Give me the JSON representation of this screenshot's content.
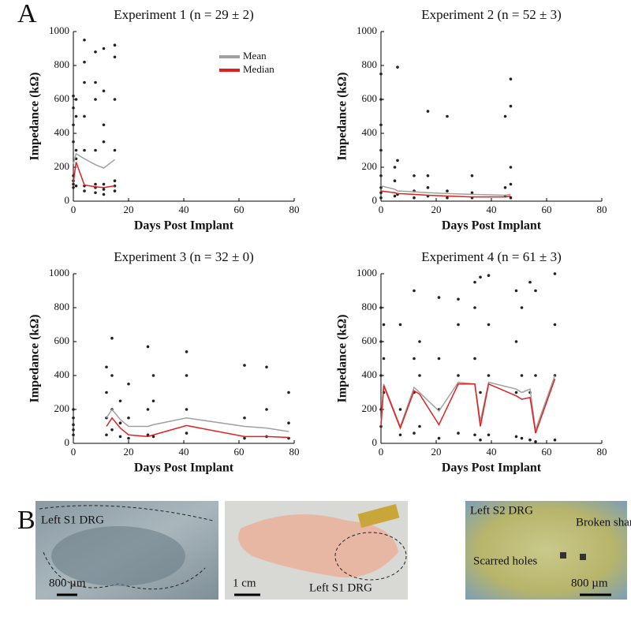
{
  "panel_labels": [
    "A",
    "B"
  ],
  "chart_data": [
    {
      "type": "scatter-line",
      "title": "Experiment 1 (n = 29 ± 2)",
      "x_label": "Days Post Implant",
      "y_label": "Impedance (kΩ)",
      "xlim": [
        0,
        80
      ],
      "xticks": [
        0,
        20,
        40,
        60,
        80
      ],
      "ylim": [
        0,
        1000
      ],
      "yticks": [
        0,
        200,
        400,
        600,
        800,
        1000
      ],
      "legend": "upper right",
      "points": {
        "color": "#222222",
        "x": [
          0,
          0,
          0,
          0,
          0,
          0,
          0,
          0,
          1,
          1,
          1,
          1,
          1,
          4,
          4,
          4,
          4,
          4,
          4,
          4,
          8,
          8,
          8,
          8,
          8,
          8,
          8,
          11,
          11,
          11,
          11,
          11,
          11,
          11,
          15,
          15,
          15,
          15,
          15,
          15,
          15
        ],
        "y": [
          80,
          100,
          120,
          150,
          350,
          450,
          550,
          620,
          90,
          250,
          300,
          500,
          600,
          60,
          90,
          300,
          500,
          700,
          820,
          950,
          50,
          80,
          100,
          300,
          600,
          700,
          880,
          40,
          70,
          100,
          350,
          450,
          650,
          900,
          60,
          90,
          120,
          300,
          600,
          850,
          920
        ]
      },
      "x": [
        0,
        1,
        4,
        8,
        11,
        15
      ],
      "series": [
        {
          "name": "Mean",
          "color": "#a0a0a0",
          "values": [
            220,
            280,
            250,
            215,
            195,
            245
          ]
        },
        {
          "name": "Median",
          "color": "#e02020",
          "values": [
            110,
            230,
            95,
            85,
            80,
            90
          ]
        }
      ]
    },
    {
      "type": "scatter-line",
      "title": "Experiment 2 (n = 52 ± 3)",
      "x_label": "Days Post Implant",
      "y_label": "Impedance (kΩ)",
      "xlim": [
        0,
        80
      ],
      "xticks": [
        0,
        20,
        40,
        60,
        80
      ],
      "ylim": [
        0,
        1000
      ],
      "yticks": [
        0,
        200,
        400,
        600,
        800,
        1000
      ],
      "points": {
        "color": "#222222",
        "x": [
          0,
          0,
          0,
          0,
          0,
          0,
          0,
          0,
          5,
          5,
          5,
          6,
          6,
          6,
          12,
          12,
          12,
          17,
          17,
          17,
          17,
          24,
          24,
          24,
          33,
          33,
          33,
          45,
          45,
          45,
          47,
          47,
          47,
          47,
          47
        ],
        "y": [
          20,
          50,
          80,
          150,
          300,
          450,
          600,
          750,
          30,
          120,
          200,
          40,
          240,
          790,
          20,
          60,
          150,
          30,
          80,
          150,
          530,
          20,
          60,
          500,
          20,
          50,
          150,
          30,
          80,
          500,
          20,
          100,
          200,
          560,
          720
        ]
      },
      "x": [
        0,
        5,
        6,
        12,
        17,
        24,
        33,
        45,
        47
      ],
      "series": [
        {
          "name": "Mean",
          "color": "#a0a0a0",
          "values": [
            90,
            70,
            60,
            55,
            50,
            45,
            40,
            35,
            40
          ]
        },
        {
          "name": "Median",
          "color": "#e02020",
          "values": [
            60,
            50,
            45,
            40,
            35,
            30,
            25,
            25,
            30
          ]
        }
      ]
    },
    {
      "type": "scatter-line",
      "title": "Experiment 3 (n = 32 ± 0)",
      "x_label": "Days Post Implant",
      "y_label": "Impedance (kΩ)",
      "xlim": [
        0,
        80
      ],
      "xticks": [
        0,
        20,
        40,
        60,
        80
      ],
      "ylim": [
        0,
        1000
      ],
      "yticks": [
        0,
        200,
        400,
        600,
        800,
        1000
      ],
      "points": {
        "color": "#222222",
        "x": [
          0,
          0,
          0,
          0,
          0,
          12,
          12,
          12,
          12,
          14,
          14,
          14,
          14,
          17,
          17,
          17,
          20,
          20,
          20,
          27,
          27,
          27,
          29,
          29,
          29,
          41,
          41,
          41,
          41,
          62,
          62,
          62,
          70,
          70,
          70,
          78,
          78,
          78
        ],
        "y": [
          50,
          80,
          110,
          150,
          200,
          50,
          150,
          300,
          450,
          80,
          200,
          400,
          620,
          40,
          120,
          250,
          30,
          150,
          350,
          50,
          200,
          570,
          40,
          250,
          400,
          60,
          200,
          400,
          540,
          30,
          150,
          460,
          40,
          200,
          450,
          30,
          120,
          300
        ]
      },
      "x": [
        12,
        14,
        17,
        20,
        27,
        29,
        41,
        62,
        70,
        78
      ],
      "series": [
        {
          "name": "Mean",
          "color": "#a0a0a0",
          "values": [
            150,
            200,
            140,
            100,
            100,
            110,
            150,
            100,
            90,
            70
          ]
        },
        {
          "name": "Median",
          "color": "#e02020",
          "values": [
            100,
            150,
            90,
            50,
            40,
            50,
            105,
            40,
            40,
            35
          ]
        }
      ]
    },
    {
      "type": "scatter-line",
      "title": "Experiment 4 (n = 61 ± 3)",
      "x_label": "Days Post Implant",
      "y_label": "Impedance (kΩ)",
      "xlim": [
        0,
        80
      ],
      "xticks": [
        0,
        20,
        40,
        60,
        80
      ],
      "ylim": [
        0,
        1000
      ],
      "yticks": [
        0,
        200,
        400,
        600,
        800,
        1000
      ],
      "points": {
        "color": "#222222",
        "x": [
          0,
          0,
          0,
          0,
          0,
          1,
          1,
          1,
          7,
          7,
          7,
          12,
          12,
          12,
          12,
          14,
          14,
          14,
          21,
          21,
          21,
          21,
          28,
          28,
          28,
          28,
          34,
          34,
          34,
          34,
          36,
          36,
          36,
          39,
          39,
          39,
          39,
          49,
          49,
          49,
          49,
          51,
          51,
          51,
          54,
          54,
          54,
          56,
          56,
          56,
          63,
          63,
          63,
          63
        ],
        "y": [
          100,
          200,
          400,
          600,
          800,
          300,
          500,
          700,
          50,
          200,
          700,
          60,
          300,
          500,
          900,
          100,
          400,
          600,
          30,
          200,
          500,
          860,
          60,
          400,
          700,
          850,
          50,
          500,
          800,
          950,
          20,
          300,
          980,
          50,
          400,
          700,
          990,
          40,
          300,
          600,
          900,
          30,
          400,
          800,
          20,
          300,
          950,
          10,
          400,
          900,
          20,
          400,
          700,
          1000
        ]
      },
      "x": [
        0,
        1,
        7,
        12,
        14,
        21,
        28,
        34,
        36,
        39,
        49,
        51,
        54,
        56,
        63
      ],
      "series": [
        {
          "name": "Mean",
          "color": "#a0a0a0",
          "values": [
            120,
            350,
            100,
            330,
            300,
            190,
            360,
            350,
            130,
            360,
            320,
            300,
            320,
            80,
            400
          ]
        },
        {
          "name": "Median",
          "color": "#e02020",
          "values": [
            100,
            340,
            90,
            310,
            290,
            110,
            350,
            350,
            100,
            350,
            280,
            260,
            270,
            60,
            380
          ]
        }
      ]
    }
  ],
  "photos": [
    {
      "labels": [
        "Left S1 DRG",
        "800 µm"
      ]
    },
    {
      "labels": [
        "1 cm",
        "Left S1 DRG"
      ]
    },
    {
      "labels": [
        "Left S2 DRG",
        "Broken shanks",
        "Scarred holes",
        "800 µm"
      ]
    }
  ]
}
